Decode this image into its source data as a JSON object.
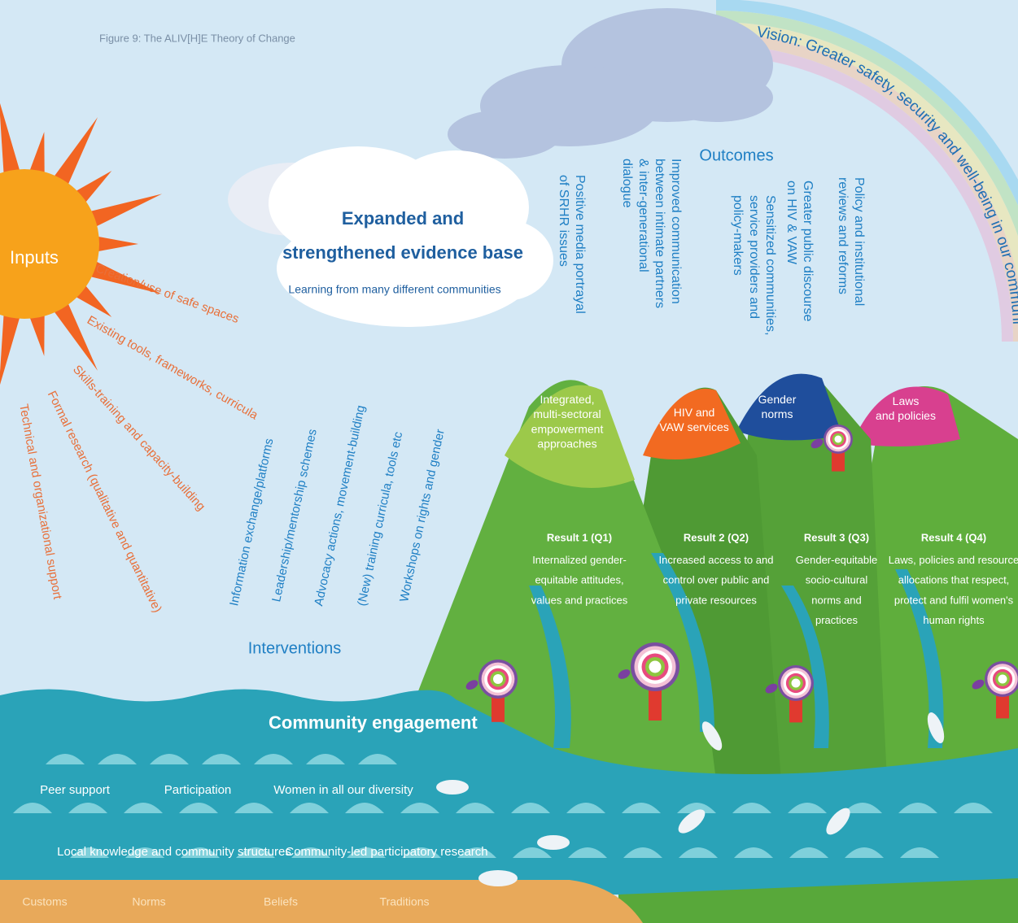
{
  "figure_title": "Figure 9: The ALIV[H]E Theory of Change",
  "vision": "Vision: Greater safety, security and well-being in our community",
  "inputs": {
    "label": "Inputs",
    "items": [
      "Creation/use of safe spaces",
      "Existing tools, frameworks, curricula",
      "Skills-training and capacity-building",
      "Formal research (qualitative and quantitative)",
      "Technical and organizational support"
    ]
  },
  "evidence": {
    "title": [
      "Expanded and",
      "strengthened evidence base"
    ],
    "subtitle": "Learning from many different communities"
  },
  "outcomes": {
    "label": "Outcomes",
    "items": [
      [
        "Positive media portrayal",
        "of SRHR issues"
      ],
      [
        "Improved communication",
        "between intimate partners",
        "& inter-generational",
        "dialogue"
      ],
      [
        "Sensitized communities,",
        "service providers and",
        "policy-makers"
      ],
      [
        "Greater public discourse",
        "on HIV & VAW"
      ],
      [
        "Policy and institutional",
        "reviews and reforms"
      ]
    ]
  },
  "interventions": {
    "label": "Interventions",
    "items": [
      "Information exchange/platforms",
      "Leadership/mentorship schemes",
      "Advocacy actions, movement-building",
      "(New) training curricula, tools etc",
      "Workshops on rights and gender"
    ]
  },
  "mountains": [
    [
      "Integrated,",
      "multi-sectoral",
      "empowerment",
      "approaches"
    ],
    [
      "HIV and",
      "VAW services"
    ],
    [
      "Gender",
      "norms"
    ],
    [
      "Laws",
      "and policies"
    ]
  ],
  "results": [
    {
      "label": "Result 1 (Q1)",
      "text": [
        "Internalized gender-",
        "equitable attitudes,",
        "values and practices"
      ]
    },
    {
      "label": "Result 2 (Q2)",
      "text": [
        "Increased access to and",
        "control over public and",
        "private resources"
      ]
    },
    {
      "label": "Result 3 (Q3)",
      "text": [
        "Gender-equitable",
        "socio-cultural",
        "norms and",
        "practices"
      ]
    },
    {
      "label": "Result 4 (Q4)",
      "text": [
        "Laws, policies and resource",
        "allocations that respect,",
        "protect and fulfil women's",
        "human rights"
      ]
    }
  ],
  "community": {
    "label": "Community engagement",
    "items": [
      "Peer support",
      "Participation",
      "Women in all our diversity",
      "Local knowledge and community structures",
      "Community-led participatory research"
    ]
  },
  "ground": [
    "Customs",
    "Norms",
    "Beliefs",
    "Traditions"
  ]
}
